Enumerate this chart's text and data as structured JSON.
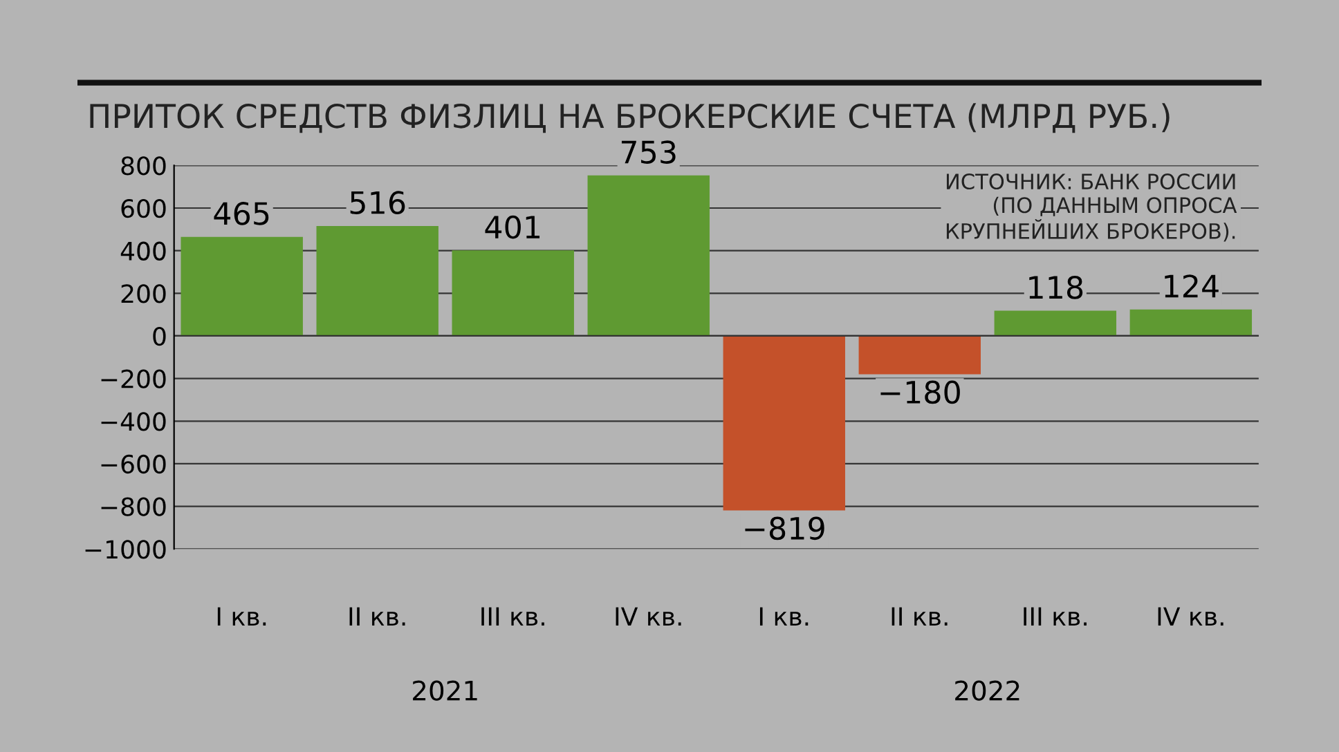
{
  "chart_data": {
    "type": "bar",
    "title": "ПРИТОК СРЕДСТВ ФИЗЛИЦ НА БРОКЕРСКИЕ СЧЕТА (МЛРД РУБ.)",
    "categories": [
      "I кв.",
      "II кв.",
      "III кв.",
      "IV кв.",
      "I кв.",
      "II кв.",
      "III кв.",
      "IV кв."
    ],
    "values": [
      465,
      516,
      401,
      753,
      -819,
      -180,
      118,
      124
    ],
    "colors": [
      "#5f9a32",
      "#5f9a32",
      "#5f9a32",
      "#5f9a32",
      "#c4512a",
      "#c4512a",
      "#5f9a32",
      "#5f9a32"
    ],
    "value_labels": [
      "465",
      "516",
      "401",
      "753",
      "−819",
      "−180",
      "118",
      "124"
    ],
    "ylim": [
      -1000,
      800
    ],
    "yticks": [
      800,
      600,
      400,
      200,
      0,
      {
        "value": -200,
        "label": "−200"
      },
      {
        "value": -400,
        "label": "−400"
      },
      {
        "value": -600,
        "label": "−600"
      },
      {
        "value": -800,
        "label": "−800"
      },
      {
        "value": -1000,
        "label": "−1000"
      }
    ],
    "annotations": [
      "ИСТОЧНИК: БАНК РОССИИ\n(ПО ДАННЫМ ОПРОСА\nКРУПНЕЙШИХ БРОКЕРОВ).",
      "2021",
      "2022"
    ],
    "grid": "y",
    "legend": false
  }
}
